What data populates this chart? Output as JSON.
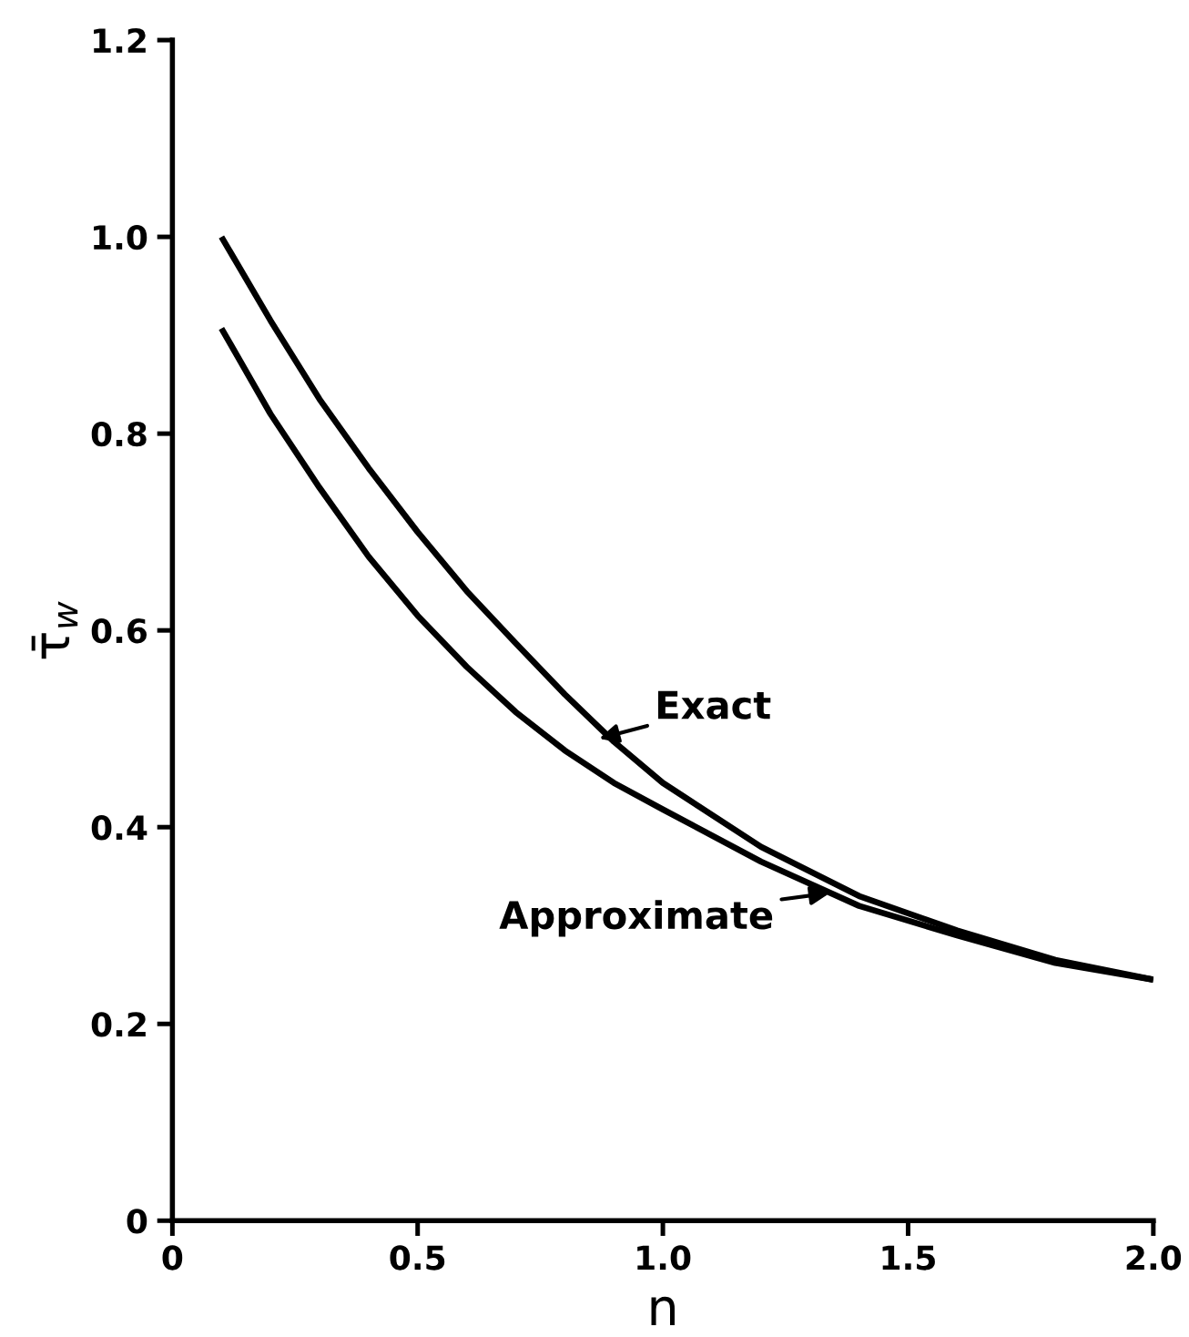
{
  "chart_data": {
    "type": "line",
    "xlabel": "n",
    "ylabel": "τ̄$_{w}$",
    "xlim": [
      0,
      2.0
    ],
    "ylim": [
      0,
      1.2
    ],
    "xticks": [
      0,
      0.5,
      {
        "value": 1,
        "label": "1.0"
      },
      1.5,
      {
        "value": 2,
        "label": "2.0"
      }
    ],
    "yticks": [
      0,
      0.2,
      0.4,
      0.6,
      0.8,
      {
        "value": 1,
        "label": "1.0"
      },
      1.2
    ],
    "grid": false,
    "legend": false,
    "marker": "none",
    "line_style": "solid",
    "series": [
      {
        "color": "#000000",
        "x": [
          0.1,
          0.2,
          0.3,
          0.4,
          0.5,
          0.6,
          0.7,
          0.8,
          0.9,
          1.0,
          1.2,
          1.4,
          1.6,
          1.8,
          2.0
        ],
        "values": [
          1.0,
          0.915,
          0.835,
          0.765,
          0.7,
          0.64,
          0.587,
          0.535,
          0.487,
          0.445,
          0.38,
          0.33,
          0.295,
          0.265,
          0.245
        ]
      },
      {
        "color": "#000000",
        "x": [
          0.1,
          0.2,
          0.3,
          0.4,
          0.5,
          0.6,
          0.7,
          0.8,
          0.9,
          1.0,
          1.2,
          1.4,
          1.6,
          1.8,
          2.0
        ],
        "values": [
          0.907,
          0.82,
          0.745,
          0.675,
          0.615,
          0.563,
          0.517,
          0.478,
          0.445,
          0.418,
          0.365,
          0.32,
          0.29,
          0.262,
          0.245
        ]
      }
    ],
    "annotations": [
      {
        "text": "Exact",
        "x": 0.87,
        "y": 0.49
      },
      {
        "text": "Approximate",
        "x": 1.34,
        "y": 0.333
      }
    ]
  }
}
